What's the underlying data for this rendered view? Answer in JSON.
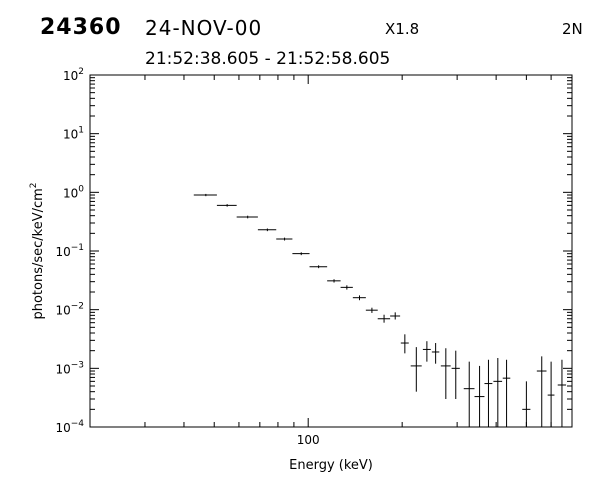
{
  "header": {
    "event_id": "24360",
    "date": "24-NOV-00",
    "flare_class": "X1.8",
    "detector": "2N",
    "time_range": "21:52:38.605  -  21:52:58.605"
  },
  "chart_data": {
    "type": "scatter",
    "style": "error-bars",
    "xlabel": "Energy (keV)",
    "ylabel": "photons/sec/keV/cm2",
    "x_scale": "log",
    "y_scale": "log",
    "xlim": [
      20,
      700
    ],
    "ylim": [
      0.0001,
      100
    ],
    "x_tick_labels": [
      {
        "value": 100,
        "label": "100"
      }
    ],
    "y_ticks": [
      {
        "value": 0.0001,
        "base": "10",
        "exp": "−4"
      },
      {
        "value": 0.001,
        "base": "10",
        "exp": "−3"
      },
      {
        "value": 0.01,
        "base": "10",
        "exp": "−2"
      },
      {
        "value": 0.1,
        "base": "10",
        "exp": "−1"
      },
      {
        "value": 1,
        "base": "10",
        "exp": "0"
      },
      {
        "value": 10,
        "base": "10",
        "exp": "1"
      },
      {
        "value": 100,
        "base": "10",
        "exp": "2"
      }
    ],
    "grid": false,
    "colors": {
      "line": "#000000",
      "background": "#ffffff"
    },
    "points": [
      {
        "x": 47,
        "xlo": 43,
        "xhi": 51,
        "y": 0.9,
        "ylo": 0.86,
        "yhi": 0.94
      },
      {
        "x": 55,
        "xlo": 51,
        "xhi": 59,
        "y": 0.6,
        "ylo": 0.57,
        "yhi": 0.63
      },
      {
        "x": 64,
        "xlo": 59,
        "xhi": 69,
        "y": 0.38,
        "ylo": 0.36,
        "yhi": 0.4
      },
      {
        "x": 74,
        "xlo": 69,
        "xhi": 79,
        "y": 0.23,
        "ylo": 0.218,
        "yhi": 0.242
      },
      {
        "x": 84,
        "xlo": 79,
        "xhi": 89,
        "y": 0.16,
        "ylo": 0.151,
        "yhi": 0.169
      },
      {
        "x": 95,
        "xlo": 89,
        "xhi": 101,
        "y": 0.09,
        "ylo": 0.085,
        "yhi": 0.095
      },
      {
        "x": 108,
        "xlo": 101,
        "xhi": 115,
        "y": 0.054,
        "ylo": 0.051,
        "yhi": 0.057
      },
      {
        "x": 121,
        "xlo": 115,
        "xhi": 127,
        "y": 0.031,
        "ylo": 0.029,
        "yhi": 0.033
      },
      {
        "x": 133,
        "xlo": 127,
        "xhi": 139,
        "y": 0.024,
        "ylo": 0.022,
        "yhi": 0.026
      },
      {
        "x": 146,
        "xlo": 139,
        "xhi": 153,
        "y": 0.016,
        "ylo": 0.0145,
        "yhi": 0.0175
      },
      {
        "x": 160,
        "xlo": 153,
        "xhi": 167,
        "y": 0.0098,
        "ylo": 0.0088,
        "yhi": 0.0108
      },
      {
        "x": 175,
        "xlo": 167,
        "xhi": 183,
        "y": 0.007,
        "ylo": 0.006,
        "yhi": 0.0082
      },
      {
        "x": 190,
        "xlo": 183,
        "xhi": 197,
        "y": 0.0078,
        "ylo": 0.0068,
        "yhi": 0.009
      },
      {
        "x": 204,
        "xlo": 198,
        "xhi": 210,
        "y": 0.0027,
        "ylo": 0.0018,
        "yhi": 0.0038
      },
      {
        "x": 222,
        "xlo": 213,
        "xhi": 231,
        "y": 0.0011,
        "ylo": 0.0004,
        "yhi": 0.0023
      },
      {
        "x": 240,
        "xlo": 233,
        "xhi": 247,
        "y": 0.0021,
        "ylo": 0.0013,
        "yhi": 0.0029
      },
      {
        "x": 256,
        "xlo": 249,
        "xhi": 263,
        "y": 0.0019,
        "ylo": 0.0012,
        "yhi": 0.0027
      },
      {
        "x": 276,
        "xlo": 266,
        "xhi": 286,
        "y": 0.0011,
        "ylo": 0.0003,
        "yhi": 0.0022
      },
      {
        "x": 297,
        "xlo": 288,
        "xhi": 306,
        "y": 0.001,
        "ylo": 0.0003,
        "yhi": 0.002
      },
      {
        "x": 328,
        "xlo": 315,
        "xhi": 341,
        "y": 0.00045,
        "ylo": 0.0001,
        "yhi": 0.0013
      },
      {
        "x": 354,
        "xlo": 341,
        "xhi": 367,
        "y": 0.00033,
        "ylo": 0.0001,
        "yhi": 0.0011
      },
      {
        "x": 378,
        "xlo": 367,
        "xhi": 389,
        "y": 0.00055,
        "ylo": 0.0001,
        "yhi": 0.0014
      },
      {
        "x": 405,
        "xlo": 392,
        "xhi": 418,
        "y": 0.0006,
        "ylo": 0.0001,
        "yhi": 0.0015
      },
      {
        "x": 432,
        "xlo": 420,
        "xhi": 444,
        "y": 0.00068,
        "ylo": 0.0001,
        "yhi": 0.0014
      },
      {
        "x": 500,
        "xlo": 485,
        "xhi": 515,
        "y": 0.0002,
        "ylo": 0.0001,
        "yhi": 0.0006
      },
      {
        "x": 560,
        "xlo": 540,
        "xhi": 580,
        "y": 0.0009,
        "ylo": 0.0001,
        "yhi": 0.0016
      },
      {
        "x": 600,
        "xlo": 585,
        "xhi": 615,
        "y": 0.00035,
        "ylo": 0.0001,
        "yhi": 0.0013
      },
      {
        "x": 650,
        "xlo": 630,
        "xhi": 670,
        "y": 0.00052,
        "ylo": 0.0001,
        "yhi": 0.0014
      }
    ]
  }
}
